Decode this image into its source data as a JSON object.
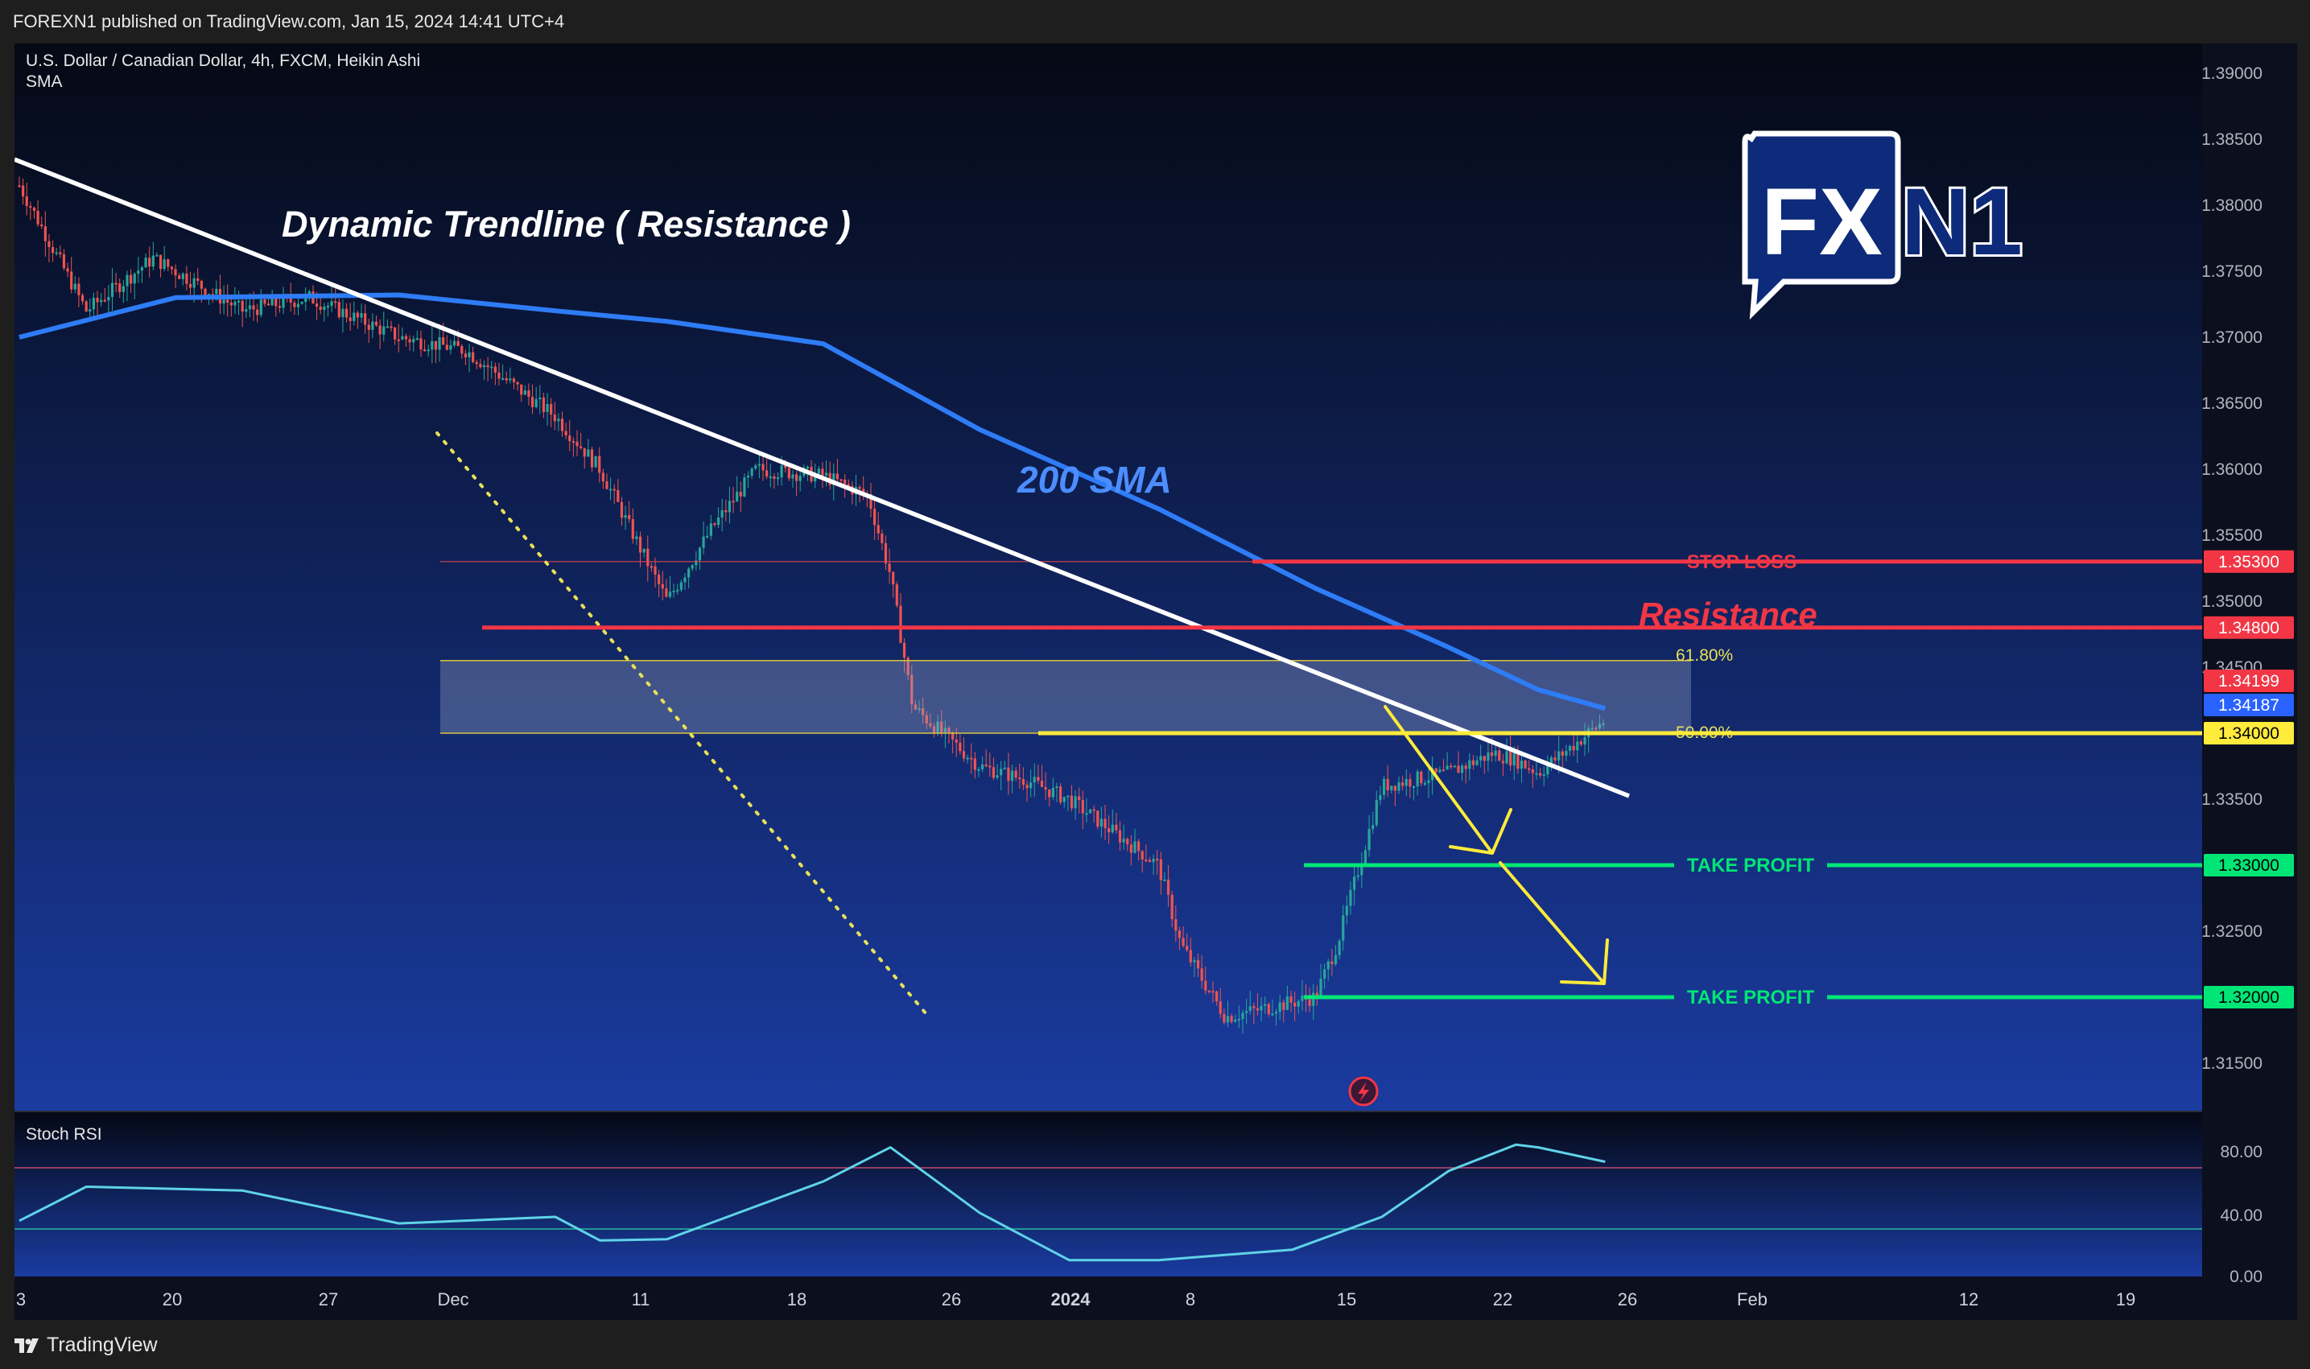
{
  "header": {
    "published": "FOREXN1 published on TradingView.com, Jan 15, 2024 14:41 UTC+4"
  },
  "footer": {
    "brand": "TradingView"
  },
  "logo": {
    "text_fx": "FX",
    "text_n1": "N1"
  },
  "chart_data": {
    "type": "line",
    "symbol": "U.S. Dollar / Canadian Dollar, 4h, FXCM, Heikin Ashi",
    "indicator": "SMA",
    "y_axis": {
      "ticks": [
        "1.39000",
        "1.38500",
        "1.38000",
        "1.37500",
        "1.37000",
        "1.36500",
        "1.36000",
        "1.35500",
        "1.35000",
        "1.34500",
        "1.33500",
        "1.32500",
        "1.31500"
      ],
      "range": [
        1.3115,
        1.3915
      ]
    },
    "x_axis": {
      "ticks": [
        "3",
        "20",
        "27",
        "Dec",
        "11",
        "18",
        "26",
        "2024",
        "8",
        "15",
        "22",
        "26",
        "Feb",
        "12",
        "19"
      ]
    },
    "price_labels": [
      {
        "value": "1.35300",
        "color": "#f23645"
      },
      {
        "value": "1.34800",
        "color": "#f23645"
      },
      {
        "value": "1.34199",
        "color": "#f23645"
      },
      {
        "value": "1.34187",
        "color": "#2962ff"
      },
      {
        "value": "1.34000",
        "color": "#ffeb3b"
      },
      {
        "value": "1.33000",
        "color": "#00e676"
      },
      {
        "value": "1.32000",
        "color": "#00e676"
      }
    ],
    "levels": [
      {
        "label": "STOP LOSS",
        "value": 1.353,
        "color": "#f23645"
      },
      {
        "label": "Resistance",
        "value": 1.348,
        "color": "#f23645"
      },
      {
        "label": "TAKE PROFIT",
        "value": 1.33,
        "color": "#00e676"
      },
      {
        "label": "TAKE PROFIT",
        "value": 1.32,
        "color": "#00e676"
      }
    ],
    "fibonacci": [
      {
        "label": "61.80%",
        "value": 1.3455
      },
      {
        "label": "50.00%",
        "value": 1.34
      }
    ],
    "annotations": {
      "trendline": "Dynamic Trendline ( Resistance )",
      "sma": "200 SMA",
      "resistance": "Resistance"
    },
    "series": [
      {
        "name": "Heikin Ashi close",
        "x": [
          "Nov 3",
          "Nov 6",
          "Nov 9",
          "Nov 13",
          "Nov 16",
          "Nov 20",
          "Nov 23",
          "Nov 27",
          "Nov 29",
          "Dec 1",
          "Dec 4",
          "Dec 6",
          "Dec 8",
          "Dec 11",
          "Dec 13",
          "Dec 14",
          "Dec 15",
          "Dec 18",
          "Dec 20",
          "Dec 22",
          "Dec 26",
          "Dec 27",
          "Dec 29",
          "Jan 2",
          "Jan 3",
          "Jan 4",
          "Jan 5",
          "Jan 8",
          "Jan 10",
          "Jan 11",
          "Jan 12",
          "Jan 15"
        ],
        "values": [
          1.3815,
          1.372,
          1.376,
          1.372,
          1.373,
          1.37,
          1.369,
          1.364,
          1.36,
          1.36,
          1.35,
          1.3555,
          1.36,
          1.3595,
          1.358,
          1.352,
          1.342,
          1.3375,
          1.3365,
          1.335,
          1.33,
          1.324,
          1.3185,
          1.32,
          1.324,
          1.33,
          1.336,
          1.337,
          1.3385,
          1.338,
          1.337,
          1.341
        ]
      },
      {
        "name": "200 SMA",
        "x": [
          "Nov 3",
          "Nov 10",
          "Nov 20",
          "Nov 27",
          "Dec 4",
          "Dec 11",
          "Dec 18",
          "Dec 26",
          "Jan 2",
          "Jan 8",
          "Jan 12",
          "Jan 15"
        ],
        "values": [
          1.37,
          1.373,
          1.3732,
          1.372,
          1.3712,
          1.3695,
          1.363,
          1.357,
          1.351,
          1.3465,
          1.3433,
          1.34187
        ]
      }
    ],
    "stoch_rsi": {
      "label": "Stoch RSI",
      "ticks": [
        "80.00",
        "40.00",
        "0.00"
      ],
      "bands": [
        80,
        20
      ],
      "x": [
        "Nov 3",
        "Nov 6",
        "Nov 13",
        "Nov 20",
        "Nov 27",
        "Dec 1",
        "Dec 4",
        "Dec 11",
        "Dec 14",
        "Dec 18",
        "Dec 22",
        "Dec 26",
        "Jan 1",
        "Jan 5",
        "Jan 8",
        "Jan 11",
        "Jan 12",
        "Jan 15"
      ],
      "values": [
        32,
        58,
        55,
        30,
        35,
        17,
        18,
        62,
        88,
        38,
        2,
        2,
        10,
        35,
        70,
        90,
        88,
        77
      ]
    }
  }
}
